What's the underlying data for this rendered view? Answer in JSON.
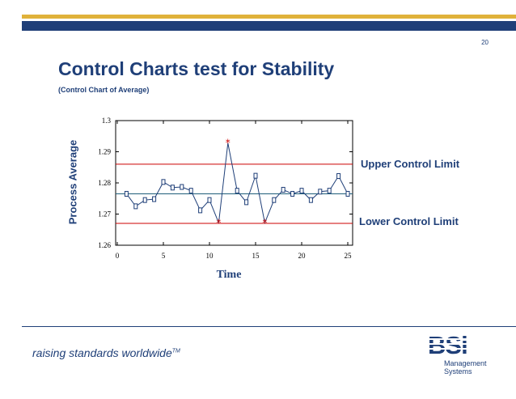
{
  "page_number": "20",
  "title": "Control Charts test for Stability",
  "subtitle": "(Control Chart of Average)",
  "labels": {
    "upper": "Upper Control Limit",
    "lower": "Lower Control Limit"
  },
  "footer": {
    "tagline": "raising standards worldwide",
    "tm": "TM",
    "logo_text": "BSi",
    "logo_sub_line1": "Management",
    "logo_sub_line2": "Systems"
  },
  "colors": {
    "navy": "#1f3f78",
    "gold": "#e0b23a",
    "limit_line": "#cc0000",
    "center_line": "#1f5f7a",
    "out_of_control": "#cc0000"
  },
  "chart_data": {
    "type": "line",
    "title": "",
    "xlabel": "Time",
    "ylabel": "Process Average",
    "xlim": [
      0,
      25
    ],
    "ylim": [
      1.26,
      1.3
    ],
    "xticks": [
      "0",
      "5",
      "10",
      "15",
      "20",
      "25"
    ],
    "yticks": [
      "1.26",
      "1.27",
      "1.28",
      "1.29",
      "1.3"
    ],
    "grid": false,
    "upper_control_limit": 1.286,
    "lower_control_limit": 1.267,
    "center_line": 1.2765,
    "series": [
      {
        "x": [
          1,
          2,
          3,
          4,
          5,
          6,
          7,
          8,
          9,
          10,
          11,
          12,
          13,
          14,
          15,
          16,
          17,
          18,
          19,
          20,
          21,
          22,
          23,
          24,
          25
        ],
        "values": [
          1.2765,
          1.2725,
          1.2745,
          1.2748,
          1.2803,
          1.2785,
          1.2787,
          1.2775,
          1.2712,
          1.2745,
          1.2672,
          1.2928,
          1.2775,
          1.2738,
          1.2823,
          1.2672,
          1.2745,
          1.2778,
          1.2765,
          1.2775,
          1.2745,
          1.2772,
          1.2775,
          1.2822,
          1.2765
        ],
        "out_of_control": [
          11,
          12,
          16
        ]
      }
    ]
  }
}
